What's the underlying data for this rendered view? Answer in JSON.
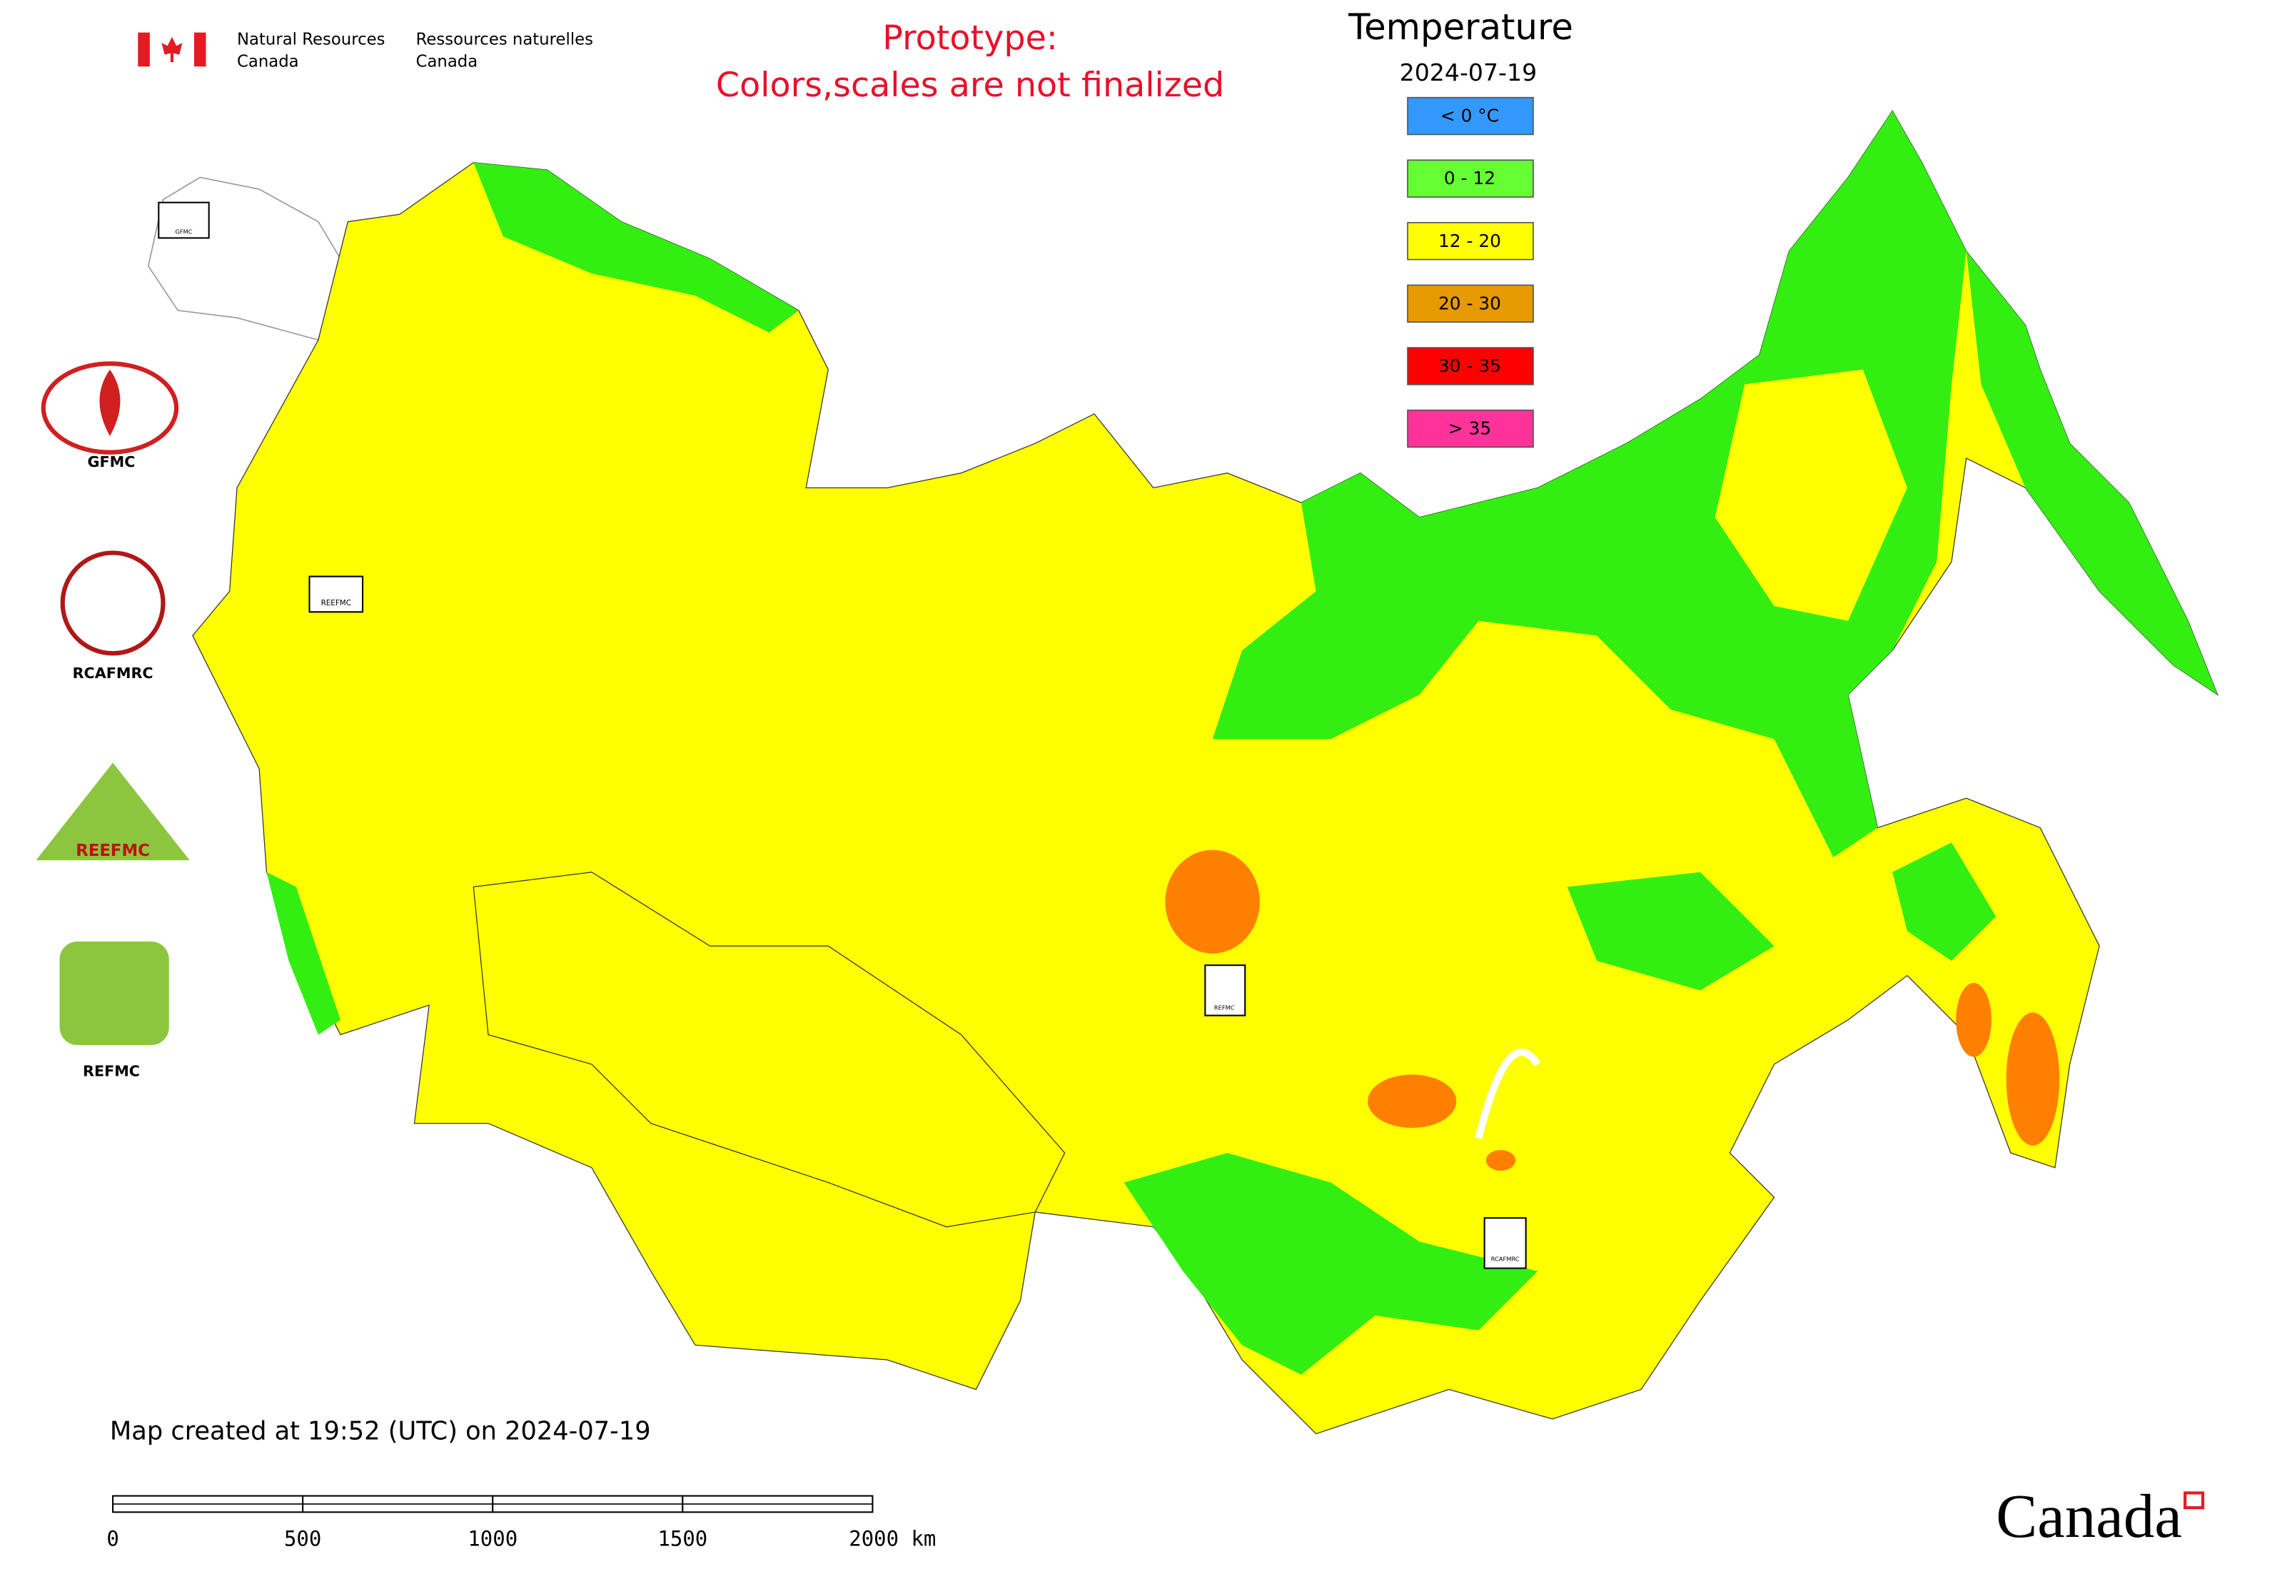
{
  "header": {
    "agency_en": [
      "Natural Resources",
      "Canada"
    ],
    "agency_fr": [
      "Ressources naturelles",
      "Canada"
    ]
  },
  "notice": {
    "line1": "Prototype:",
    "line2": "Colors,scales are not finalized"
  },
  "legend": {
    "title": "Temperature",
    "date": "2024-07-19",
    "items": [
      {
        "label": "< 0 °C",
        "color": "#3399ff"
      },
      {
        "label": "0 - 12",
        "color": "#66ff33"
      },
      {
        "label": "12 - 20",
        "color": "#ffff00"
      },
      {
        "label": "20 - 30",
        "color": "#e69a00"
      },
      {
        "label": "30 - 35",
        "color": "#ff0000"
      },
      {
        "label": "> 35",
        "color": "#ff3399"
      }
    ]
  },
  "logos": {
    "gfmc": "GFMC",
    "rcafmrc": "RCAFMRC",
    "reefmc": "REEFMC",
    "refmc": "REFMC"
  },
  "map_markers": {
    "gfmc": "GFMC",
    "reefmc": "REEFMC",
    "refmc": "REFMC",
    "rcafmrc": "RCAFMRC"
  },
  "footer": {
    "created": "Map created at 19:52 (UTC) on 2024-07-19",
    "wordmark": "Canada"
  },
  "scale_bar": {
    "labels": [
      "0",
      "500",
      "1000",
      "1500",
      "2000 km"
    ]
  }
}
